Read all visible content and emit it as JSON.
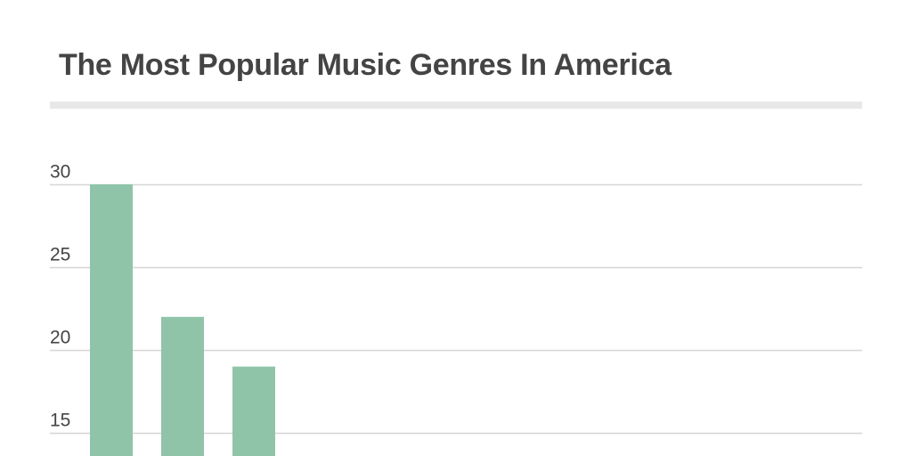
{
  "chart_data": {
    "type": "bar",
    "title": "The Most Popular Music Genres In America",
    "xlabel": "",
    "ylabel": "",
    "yticks": [
      15,
      20,
      25,
      30
    ],
    "ylim": [
      13.6,
      30
    ],
    "grid": true,
    "values": [
      30,
      22,
      19
    ],
    "colors": {
      "bar": "#8fc4a8",
      "grid": "#d6d6d6",
      "text": "#444444",
      "rule": "#e8e8e8"
    }
  }
}
